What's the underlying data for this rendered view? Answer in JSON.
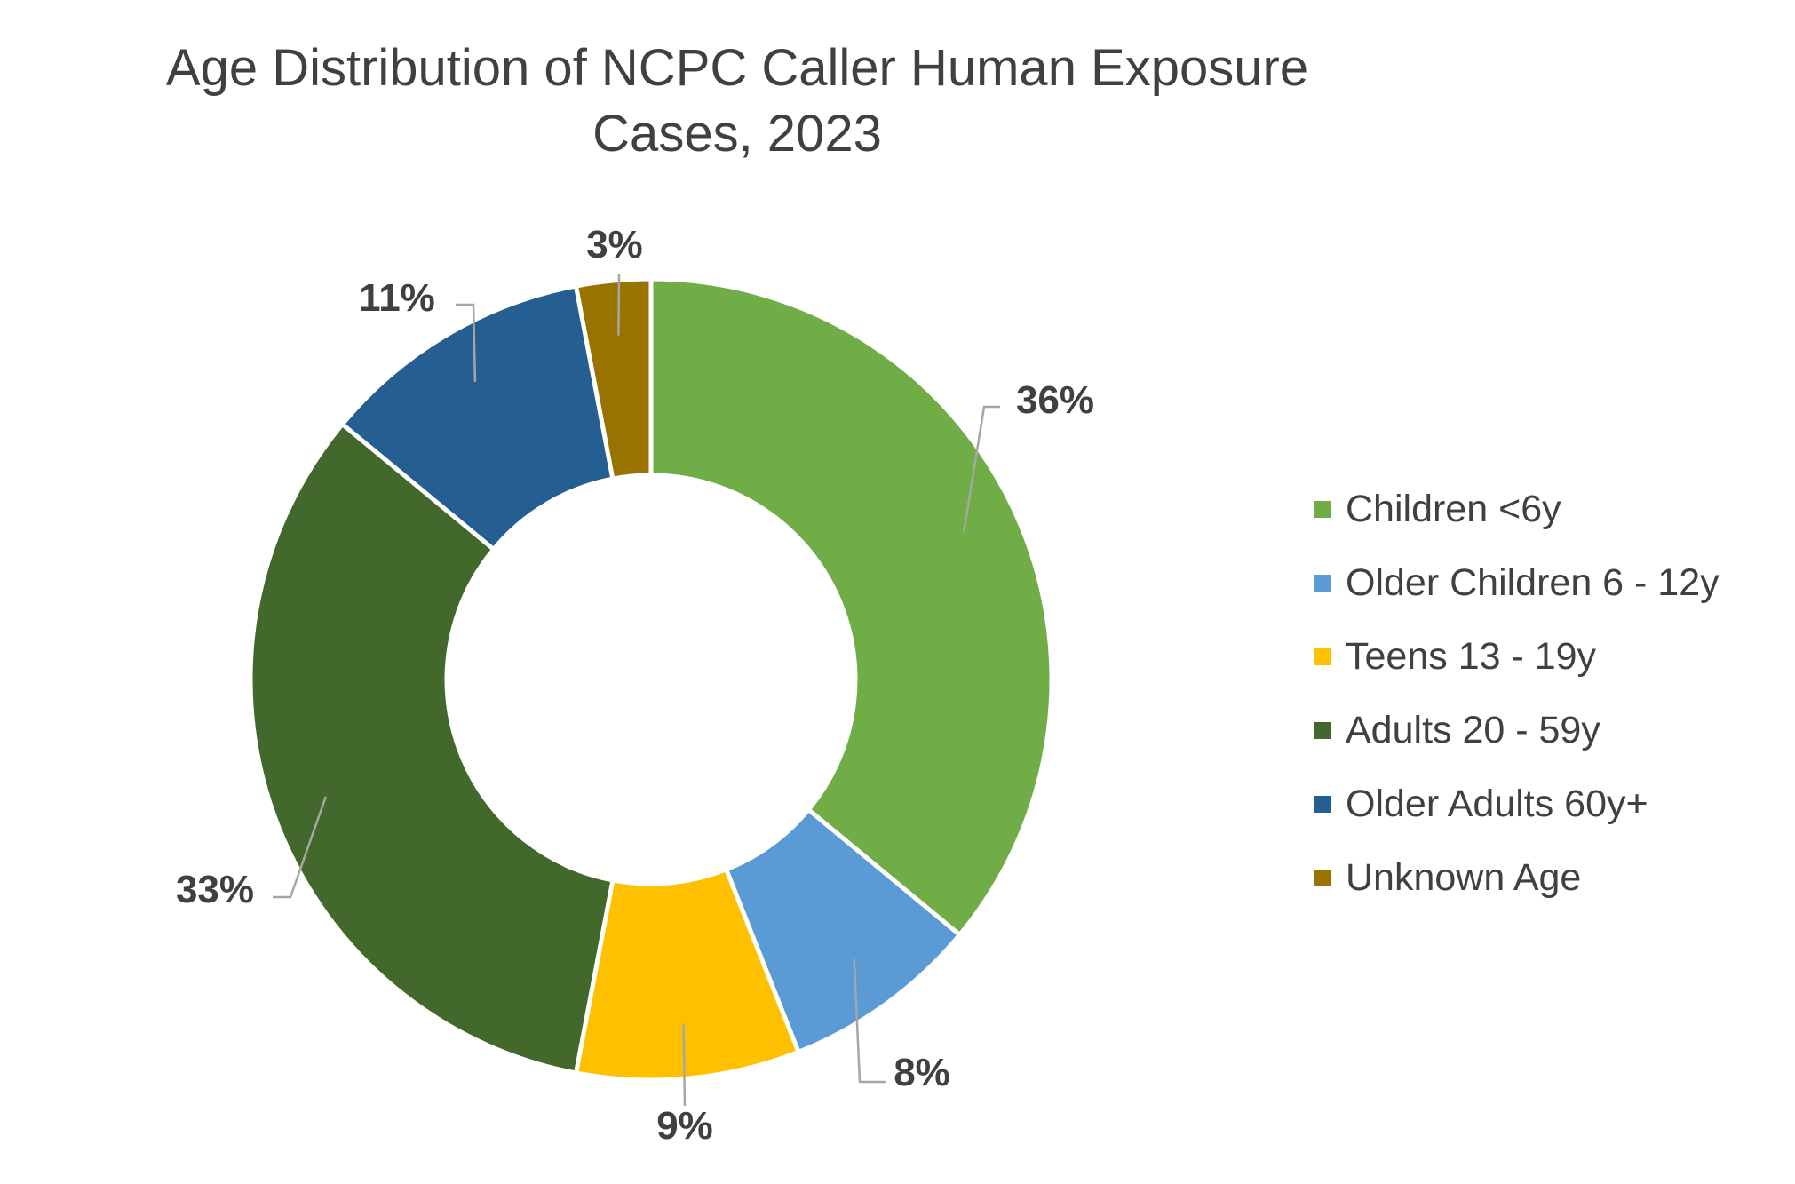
{
  "title_lines": [
    "Age Distribution of NCPC Caller Human Exposure",
    "Cases, 2023"
  ],
  "chart_data": {
    "type": "pie",
    "title": "Age Distribution of NCPC Caller Human Exposure Cases, 2023",
    "donut": true,
    "legend_position": "right",
    "categories": [
      "Children <6y",
      "Older Children 6 - 12y",
      "Teens 13 - 19y",
      "Adults 20 - 59y",
      "Older Adults 60y+",
      "Unknown Age"
    ],
    "values": [
      36,
      8,
      9,
      33,
      11,
      3
    ],
    "data_labels": [
      "36%",
      "8%",
      "9%",
      "33%",
      "11%",
      "3%"
    ],
    "colors": [
      "#70AD47",
      "#5B9BD5",
      "#FFC000",
      "#43682B",
      "#255E91",
      "#997300"
    ]
  }
}
